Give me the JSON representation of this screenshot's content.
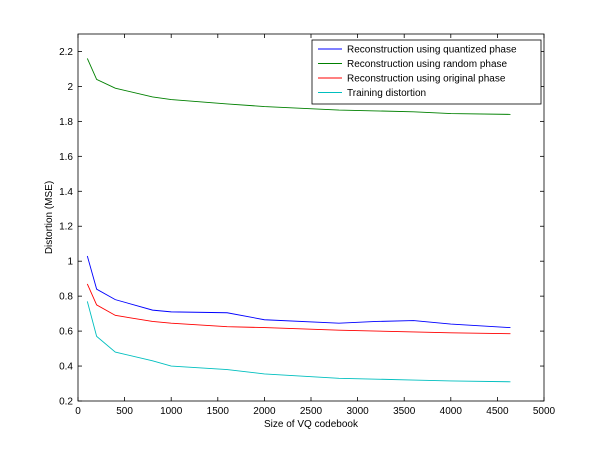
{
  "chart_data": {
    "type": "line",
    "xlabel": "Size of VQ codebook",
    "ylabel": "Distortion (MSE)",
    "xlim": [
      0,
      5000
    ],
    "ylim": [
      0.2,
      2.3
    ],
    "xticks": [
      0,
      500,
      1000,
      1500,
      2000,
      2500,
      3000,
      3500,
      4000,
      4500,
      5000
    ],
    "yticks": [
      0.2,
      0.4,
      0.6,
      0.8,
      1.0,
      1.2,
      1.4,
      1.6,
      1.8,
      2.0,
      2.2
    ],
    "xtick_labels": [
      "0",
      "500",
      "1000",
      "1500",
      "2000",
      "2500",
      "3000",
      "3500",
      "4000",
      "4500",
      "5000"
    ],
    "ytick_labels": [
      "0.2",
      "0.4",
      "0.6",
      "0.8",
      "1",
      "1.2",
      "1.4",
      "1.6",
      "1.8",
      "2",
      "2.2"
    ],
    "grid": false,
    "legend_position": "top-right",
    "series": [
      {
        "name": "Reconstruction using quantized phase",
        "color": "#0000ff",
        "x": [
          100,
          200,
          400,
          800,
          1000,
          1600,
          2000,
          2800,
          3200,
          3600,
          4000,
          4640
        ],
        "y": [
          1.03,
          0.84,
          0.78,
          0.72,
          0.71,
          0.705,
          0.665,
          0.645,
          0.655,
          0.66,
          0.64,
          0.62
        ]
      },
      {
        "name": "Reconstruction using random phase",
        "color": "#008000",
        "x": [
          100,
          200,
          400,
          800,
          1000,
          1600,
          2000,
          2800,
          3200,
          3600,
          4000,
          4640
        ],
        "y": [
          2.16,
          2.04,
          1.99,
          1.94,
          1.925,
          1.9,
          1.885,
          1.865,
          1.86,
          1.855,
          1.845,
          1.84
        ]
      },
      {
        "name": "Reconstruction using original phase",
        "color": "#ff0000",
        "x": [
          100,
          200,
          400,
          800,
          1000,
          1600,
          2000,
          2800,
          3200,
          3600,
          4000,
          4640
        ],
        "y": [
          0.87,
          0.75,
          0.69,
          0.655,
          0.645,
          0.625,
          0.62,
          0.605,
          0.6,
          0.595,
          0.59,
          0.585
        ]
      },
      {
        "name": "Training distortion",
        "color": "#00bfbf",
        "x": [
          100,
          200,
          400,
          800,
          1000,
          1600,
          2000,
          2800,
          3200,
          3600,
          4000,
          4640
        ],
        "y": [
          0.77,
          0.57,
          0.48,
          0.43,
          0.4,
          0.38,
          0.355,
          0.33,
          0.325,
          0.32,
          0.315,
          0.31
        ]
      }
    ]
  }
}
